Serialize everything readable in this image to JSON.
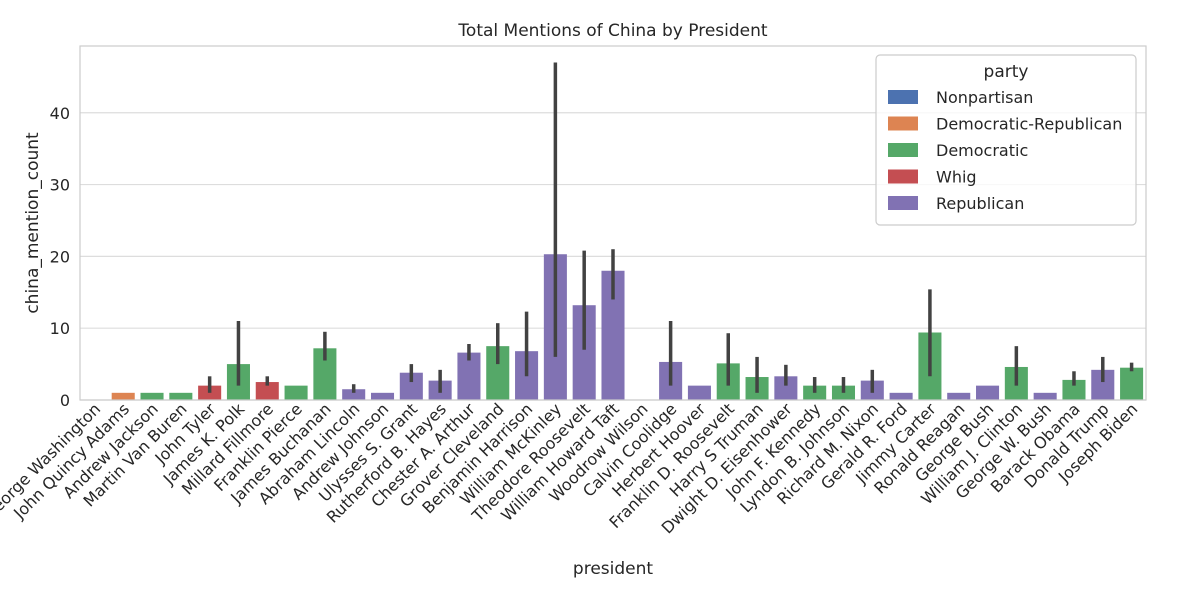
{
  "chart_data": {
    "type": "bar",
    "title": "Total Mentions of China by President",
    "xlabel": "president",
    "ylabel": "china_mention_count",
    "ylim": [
      0,
      49.3
    ],
    "yticks": [
      0,
      10,
      20,
      30,
      40
    ],
    "grid": true,
    "legend": {
      "title": "party",
      "placement": "top-right"
    },
    "parties": [
      {
        "name": "Nonpartisan",
        "color": "#4c72b0"
      },
      {
        "name": "Democratic-Republican",
        "color": "#dd8452"
      },
      {
        "name": "Democratic",
        "color": "#55a868"
      },
      {
        "name": "Whig",
        "color": "#c44e52"
      },
      {
        "name": "Republican",
        "color": "#8172b3"
      }
    ],
    "bars": [
      {
        "president": "George Washington",
        "party": "Nonpartisan",
        "value": 0,
        "err": null
      },
      {
        "president": "John Quincy Adams",
        "party": "Democratic-Republican",
        "value": 1,
        "err": null
      },
      {
        "president": "Andrew Jackson",
        "party": "Democratic",
        "value": 1,
        "err": null
      },
      {
        "president": "Martin Van Buren",
        "party": "Democratic",
        "value": 1,
        "err": null
      },
      {
        "president": "John Tyler",
        "party": "Whig",
        "value": 2,
        "err": [
          1,
          3.3
        ]
      },
      {
        "president": "James K. Polk",
        "party": "Democratic",
        "value": 5,
        "err": [
          2,
          11
        ]
      },
      {
        "president": "Millard Fillmore",
        "party": "Whig",
        "value": 2.5,
        "err": [
          2,
          3.3
        ]
      },
      {
        "president": "Franklin Pierce",
        "party": "Democratic",
        "value": 2,
        "err": null
      },
      {
        "president": "James Buchanan",
        "party": "Democratic",
        "value": 7.2,
        "err": [
          5.5,
          9.5
        ]
      },
      {
        "president": "Abraham Lincoln",
        "party": "Republican",
        "value": 1.5,
        "err": [
          1,
          2.2
        ]
      },
      {
        "president": "Andrew Johnson",
        "party": "Republican",
        "value": 1,
        "err": null
      },
      {
        "president": "Ulysses S. Grant",
        "party": "Republican",
        "value": 3.8,
        "err": [
          2.5,
          5
        ]
      },
      {
        "president": "Rutherford B. Hayes",
        "party": "Republican",
        "value": 2.7,
        "err": [
          1,
          4.2
        ]
      },
      {
        "president": "Chester A. Arthur",
        "party": "Republican",
        "value": 6.6,
        "err": [
          5.5,
          7.8
        ]
      },
      {
        "president": "Grover Cleveland",
        "party": "Democratic",
        "value": 7.5,
        "err": [
          5,
          10.7
        ]
      },
      {
        "president": "Benjamin Harrison",
        "party": "Republican",
        "value": 6.8,
        "err": [
          3.3,
          12.3
        ]
      },
      {
        "president": "William McKinley",
        "party": "Republican",
        "value": 20.3,
        "err": [
          6,
          47
        ]
      },
      {
        "president": "Theodore Roosevelt",
        "party": "Republican",
        "value": 13.2,
        "err": [
          7,
          20.8
        ]
      },
      {
        "president": "William Howard Taft",
        "party": "Republican",
        "value": 18,
        "err": [
          14,
          21
        ]
      },
      {
        "president": "Woodrow Wilson",
        "party": "Democratic",
        "value": 0,
        "err": null
      },
      {
        "president": "Calvin Coolidge",
        "party": "Republican",
        "value": 5.3,
        "err": [
          2,
          11
        ]
      },
      {
        "president": "Herbert Hoover",
        "party": "Republican",
        "value": 2,
        "err": null
      },
      {
        "president": "Franklin D. Roosevelt",
        "party": "Democratic",
        "value": 5.1,
        "err": [
          2,
          9.3
        ]
      },
      {
        "president": "Harry S Truman",
        "party": "Democratic",
        "value": 3.2,
        "err": [
          1,
          6
        ]
      },
      {
        "president": "Dwight D. Eisenhower",
        "party": "Republican",
        "value": 3.3,
        "err": [
          2,
          4.9
        ]
      },
      {
        "president": "John F. Kennedy",
        "party": "Democratic",
        "value": 2,
        "err": [
          1,
          3.2
        ]
      },
      {
        "president": "Lyndon B. Johnson",
        "party": "Democratic",
        "value": 2,
        "err": [
          1,
          3.2
        ]
      },
      {
        "president": "Richard M. Nixon",
        "party": "Republican",
        "value": 2.7,
        "err": [
          1,
          4.2
        ]
      },
      {
        "president": "Gerald R. Ford",
        "party": "Republican",
        "value": 1,
        "err": null
      },
      {
        "president": "Jimmy Carter",
        "party": "Democratic",
        "value": 9.4,
        "err": [
          3.3,
          15.4
        ]
      },
      {
        "president": "Ronald Reagan",
        "party": "Republican",
        "value": 1,
        "err": null
      },
      {
        "president": "George Bush",
        "party": "Republican",
        "value": 2,
        "err": null
      },
      {
        "president": "William J. Clinton",
        "party": "Democratic",
        "value": 4.6,
        "err": [
          2,
          7.5
        ]
      },
      {
        "president": "George W. Bush",
        "party": "Republican",
        "value": 1,
        "err": null
      },
      {
        "president": "Barack Obama",
        "party": "Democratic",
        "value": 2.8,
        "err": [
          2,
          4
        ]
      },
      {
        "president": "Donald Trump",
        "party": "Republican",
        "value": 4.2,
        "err": [
          2.5,
          6
        ]
      },
      {
        "president": "Joseph Biden",
        "party": "Democratic",
        "value": 4.5,
        "err": [
          4,
          5.2
        ]
      }
    ]
  }
}
